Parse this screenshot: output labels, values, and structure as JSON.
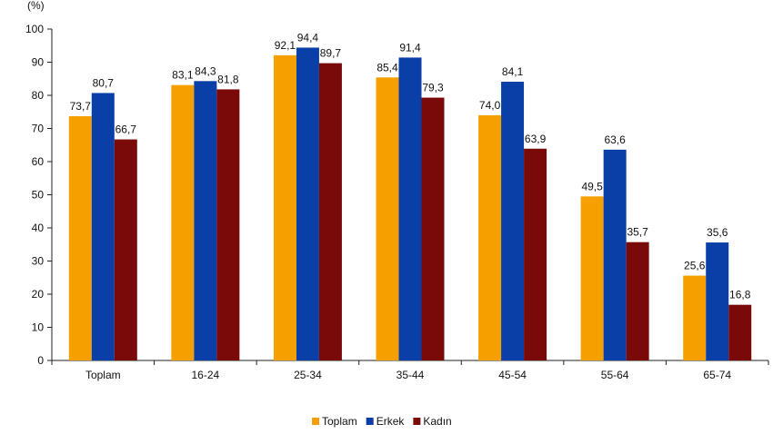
{
  "chart_data": {
    "type": "bar",
    "unit_label": "(%)",
    "categories": [
      "Toplam",
      "16-24",
      "25-34",
      "35-44",
      "45-54",
      "55-64",
      "65-74"
    ],
    "series": [
      {
        "name": "Toplam",
        "color": "#F5A000",
        "values": [
          73.7,
          83.1,
          92.1,
          85.4,
          74.0,
          49.5,
          25.6
        ],
        "labels": [
          "73,7",
          "83,1",
          "92,1",
          "85,4",
          "74,0",
          "49,5",
          "25,6"
        ]
      },
      {
        "name": "Erkek",
        "color": "#0A3FA8",
        "values": [
          80.7,
          84.3,
          94.4,
          91.4,
          84.1,
          63.6,
          35.6
        ],
        "labels": [
          "80,7",
          "84,3",
          "94,4",
          "91,4",
          "84,1",
          "63,6",
          "35,6"
        ]
      },
      {
        "name": "Kadın",
        "color": "#7A0A0A",
        "values": [
          66.7,
          81.8,
          89.7,
          79.3,
          63.9,
          35.7,
          16.8
        ],
        "labels": [
          "66,7",
          "81,8",
          "89,7",
          "79,3",
          "63,9",
          "35,7",
          "16,8"
        ]
      }
    ],
    "yticks": [
      "0",
      "10",
      "20",
      "30",
      "40",
      "50",
      "60",
      "70",
      "80",
      "90",
      "100"
    ],
    "ylim": [
      0,
      100
    ],
    "grid": false,
    "legend_position": "bottom-center"
  }
}
